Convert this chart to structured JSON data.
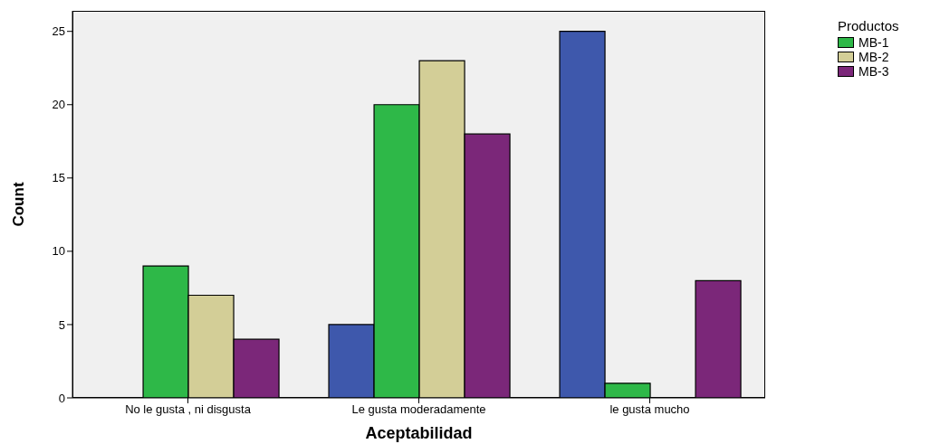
{
  "chart_data": {
    "type": "bar",
    "xlabel": "Aceptabilidad",
    "ylabel": "Count",
    "legend_title": "Productos",
    "legend": "top right",
    "grid": false,
    "categories": [
      "No le gusta , ni disgusta",
      "Le gusta moderadamente",
      "le gusta mucho"
    ],
    "ylim": [
      0,
      26.4
    ],
    "yticks": [
      0,
      5,
      10,
      15,
      20,
      25
    ],
    "series": [
      {
        "color": "#3e58ac",
        "values": [
          0,
          5,
          25
        ]
      },
      {
        "name": "MB-1",
        "color": "#2eb848",
        "values": [
          9,
          20,
          1
        ]
      },
      {
        "name": "MB-2",
        "color": "#d3ce97",
        "values": [
          7,
          23,
          0
        ]
      },
      {
        "name": "MB-3",
        "color": "#7b2779",
        "values": [
          4,
          18,
          8
        ]
      }
    ]
  }
}
